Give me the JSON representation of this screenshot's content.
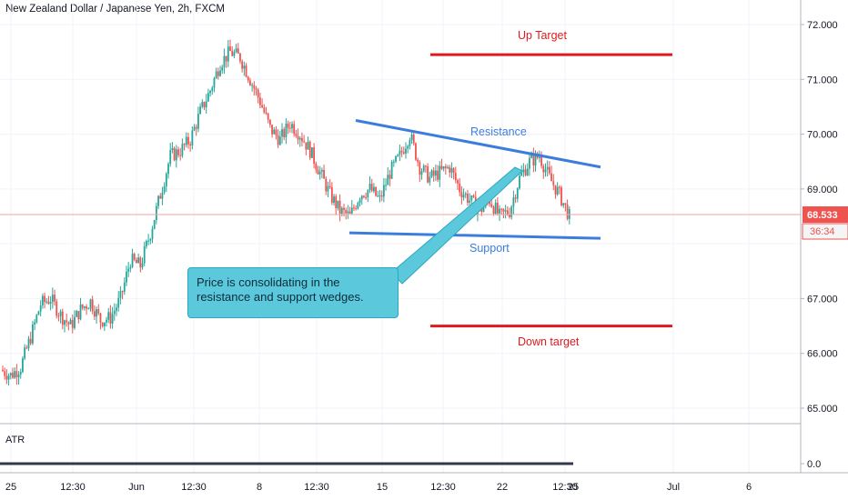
{
  "title": "New Zealand Dollar / Japanese Yen, 2h, FXCM",
  "chart_data": {
    "type": "candlestick",
    "title": "New Zealand Dollar / Japanese Yen, 2h, FXCM",
    "symbol": "NZDJPY",
    "ylim": [
      64.8,
      72.3
    ],
    "y_ticks": [
      "72.000",
      "71.000",
      "70.000",
      "69.000",
      "67.000",
      "66.000",
      "65.000"
    ],
    "x_ticks": [
      "25",
      "12:30",
      "Jun",
      "12:30",
      "8",
      "12:30",
      "15",
      "12:30",
      "22",
      "12:30",
      "25",
      "Jul",
      "6"
    ],
    "last_price": "68.533",
    "countdown": "36:34",
    "price_path": [
      65.7,
      65.6,
      65.75,
      66.3,
      66.9,
      67.0,
      66.7,
      66.5,
      66.8,
      66.95,
      66.6,
      66.65,
      67.0,
      67.7,
      67.6,
      68.2,
      68.9,
      69.6,
      69.7,
      69.9,
      70.4,
      70.8,
      71.3,
      71.5,
      71.4,
      71.0,
      70.6,
      70.1,
      69.9,
      70.2,
      70.0,
      69.7,
      69.3,
      68.9,
      68.6,
      68.5,
      68.9,
      69.0,
      68.8,
      69.3,
      69.6,
      70.0,
      69.4,
      69.2,
      69.3,
      69.4,
      69.0,
      68.8,
      68.6,
      68.8,
      68.5,
      68.6,
      69.2,
      69.5,
      69.6,
      69.2,
      68.9,
      68.5
    ],
    "annotations": {
      "resistance_label": "Resistance",
      "support_label": "Support",
      "up_target_label": "Up Target",
      "down_target_label": "Down target",
      "note": "Price is consolidating in the resistance and support wedges.",
      "up_target_level": 71.45,
      "down_target_level": 66.5,
      "resistance_line": [
        [
          "15",
          70.25
        ],
        [
          "29",
          69.4
        ]
      ],
      "support_line": [
        [
          "12:30",
          68.2
        ],
        [
          "29",
          68.1
        ]
      ]
    },
    "indicator": {
      "name": "ATR",
      "tick": "0.0"
    },
    "colors": {
      "up": "#26a69a",
      "down": "#ef5350",
      "resistance": "#3b7ddd",
      "target": "#e0191e",
      "note_box": "#5cc8dc",
      "price_tag": "#ef5350"
    }
  }
}
